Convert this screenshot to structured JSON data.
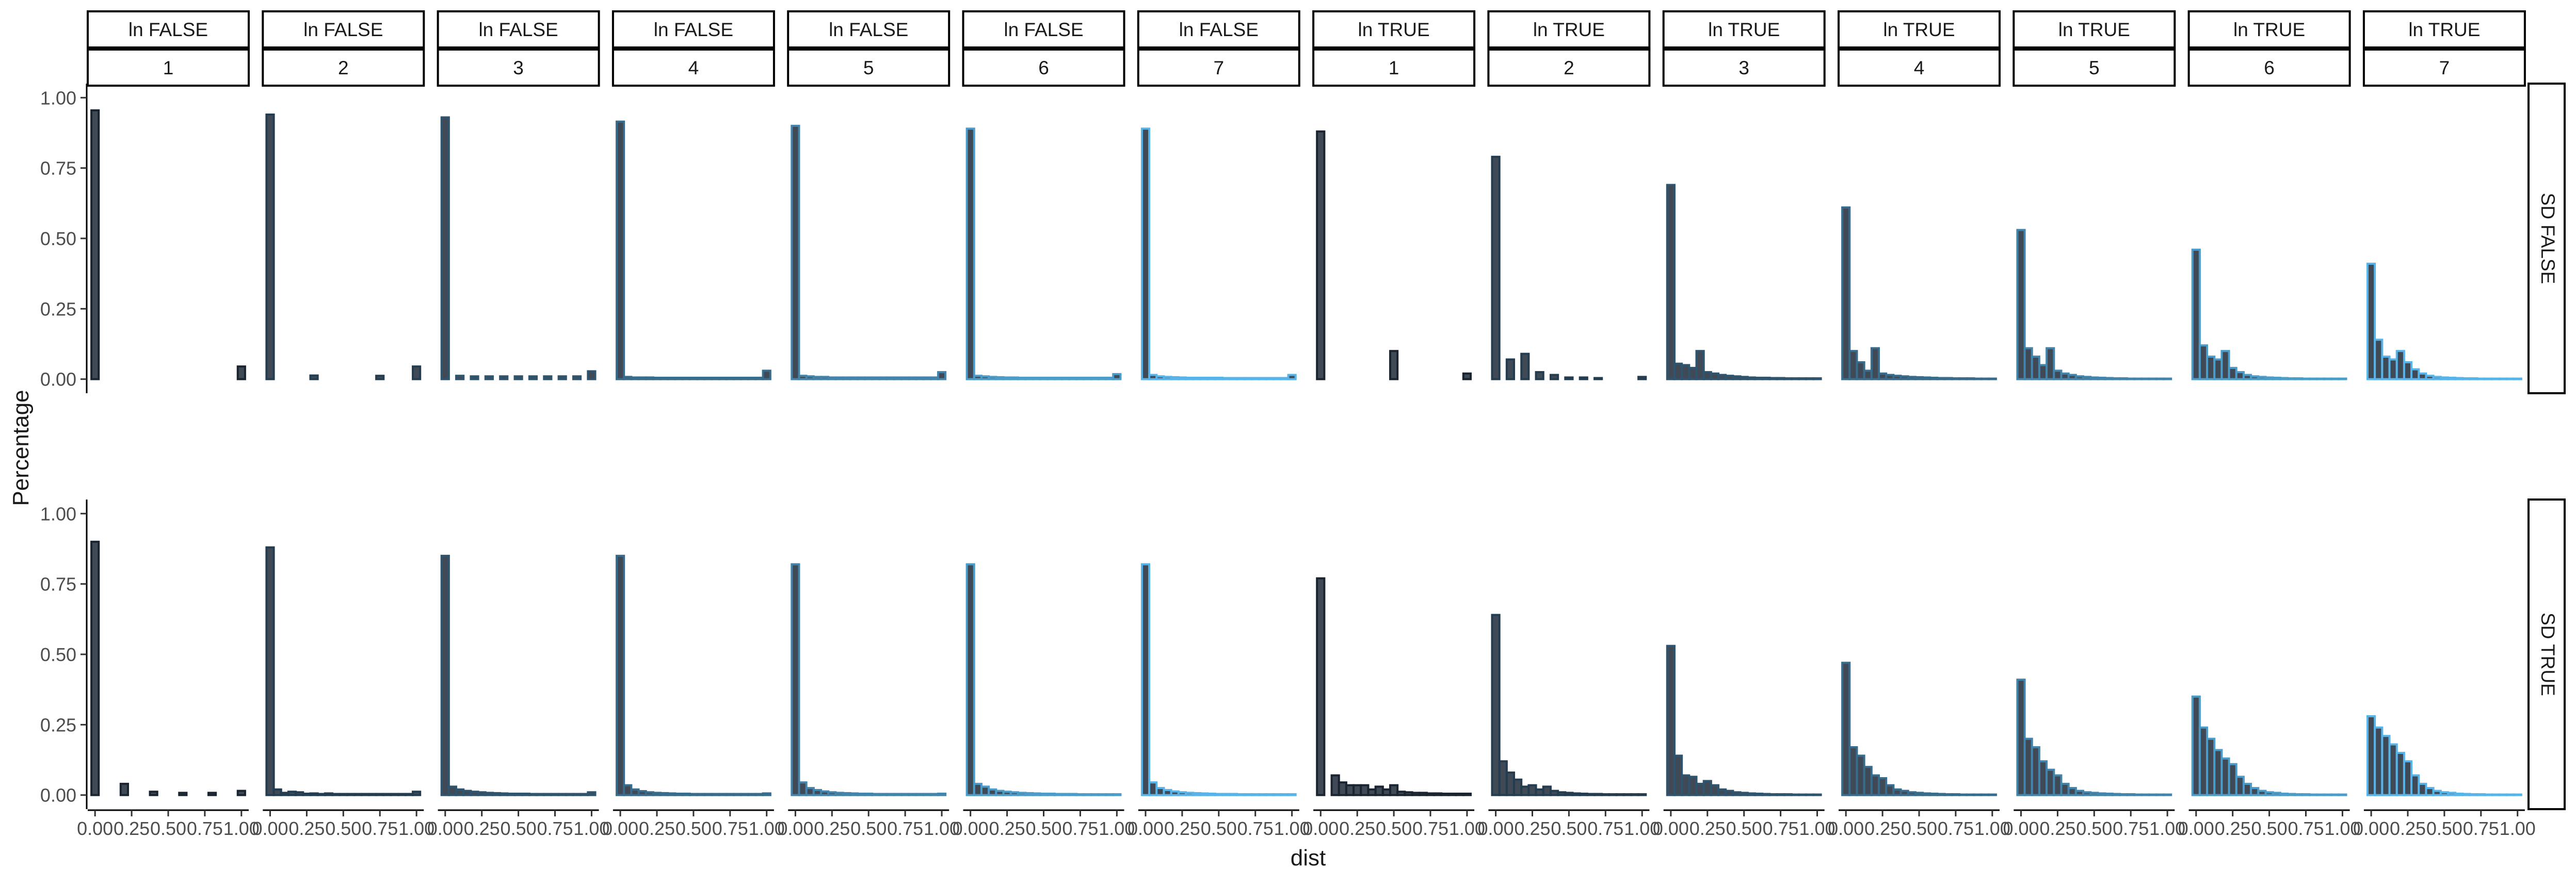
{
  "chart_data": {
    "type": "bar",
    "xlabel": "dist",
    "ylabel": "Percentage",
    "xlim": [
      -0.05,
      1.05
    ],
    "ylim": [
      -0.05,
      1.05
    ],
    "x_tick_values": [
      0,
      0.25,
      0.5,
      0.75,
      1
    ],
    "x_tick_labels": [
      "0.00",
      "0.25",
      "0.50",
      "0.75",
      "1.00"
    ],
    "y_tick_values": [
      0,
      0.25,
      0.5,
      0.75,
      1
    ],
    "y_tick_labels": [
      "0.00",
      "0.25",
      "0.50",
      "0.75",
      "1.00"
    ],
    "grid": false,
    "legend": "none",
    "colors": {
      "bar_fill": "#3f4a56",
      "edge_low": "#1a2430",
      "edge_high": "#56b4e9"
    },
    "bin_centers": [
      0.0,
      0.05,
      0.1,
      0.15,
      0.2,
      0.25,
      0.3,
      0.35,
      0.4,
      0.45,
      0.5,
      0.55,
      0.6,
      0.65,
      0.7,
      0.75,
      0.8,
      0.85,
      0.9,
      0.95,
      1.0
    ],
    "column_strips": [
      {
        "top": "ln FALSE",
        "bottom": "1"
      },
      {
        "top": "ln FALSE",
        "bottom": "2"
      },
      {
        "top": "ln FALSE",
        "bottom": "3"
      },
      {
        "top": "ln FALSE",
        "bottom": "4"
      },
      {
        "top": "ln FALSE",
        "bottom": "5"
      },
      {
        "top": "ln FALSE",
        "bottom": "6"
      },
      {
        "top": "ln FALSE",
        "bottom": "7"
      },
      {
        "top": "ln TRUE",
        "bottom": "1"
      },
      {
        "top": "ln TRUE",
        "bottom": "2"
      },
      {
        "top": "ln TRUE",
        "bottom": "3"
      },
      {
        "top": "ln TRUE",
        "bottom": "4"
      },
      {
        "top": "ln TRUE",
        "bottom": "5"
      },
      {
        "top": "ln TRUE",
        "bottom": "6"
      },
      {
        "top": "ln TRUE",
        "bottom": "7"
      }
    ],
    "row_strips": [
      "SD FALSE",
      "SD TRUE"
    ],
    "panels": [
      [
        [
          0.955,
          0,
          0,
          0,
          0,
          0,
          0,
          0,
          0,
          0,
          0,
          0,
          0,
          0,
          0,
          0,
          0,
          0,
          0,
          0,
          0.045
        ],
        [
          0.94,
          0,
          0,
          0,
          0,
          0,
          0.013,
          0,
          0,
          0,
          0,
          0,
          0,
          0,
          0,
          0.012,
          0,
          0,
          0,
          0,
          0.045
        ],
        [
          0.93,
          0,
          0.012,
          0,
          0.01,
          0,
          0.01,
          0,
          0.01,
          0,
          0.01,
          0,
          0.01,
          0,
          0.01,
          0,
          0.01,
          0,
          0.01,
          0,
          0.028
        ],
        [
          0.915,
          0.008,
          0.006,
          0.006,
          0.006,
          0.005,
          0.005,
          0.005,
          0.005,
          0.005,
          0.005,
          0.005,
          0.005,
          0.005,
          0.005,
          0.005,
          0.005,
          0.005,
          0.005,
          0.005,
          0.03
        ],
        [
          0.9,
          0.012,
          0.01,
          0.008,
          0.008,
          0.006,
          0.006,
          0.006,
          0.006,
          0.006,
          0.006,
          0.006,
          0.006,
          0.006,
          0.006,
          0.006,
          0.006,
          0.006,
          0.006,
          0.006,
          0.025
        ],
        [
          0.89,
          0.012,
          0.01,
          0.008,
          0.007,
          0.006,
          0.006,
          0.005,
          0.005,
          0.005,
          0.005,
          0.005,
          0.005,
          0.005,
          0.005,
          0.005,
          0.005,
          0.005,
          0.005,
          0.005,
          0.018
        ],
        [
          0.89,
          0.015,
          0.01,
          0.008,
          0.007,
          0.006,
          0.005,
          0.005,
          0.005,
          0.005,
          0.005,
          0.004,
          0.004,
          0.004,
          0.004,
          0.004,
          0.004,
          0.004,
          0.004,
          0.004,
          0.015
        ],
        [
          0.88,
          0,
          0,
          0,
          0,
          0,
          0,
          0,
          0,
          0,
          0.1,
          0,
          0,
          0,
          0,
          0,
          0,
          0,
          0,
          0,
          0.02
        ],
        [
          0.79,
          0,
          0.07,
          0,
          0.09,
          0,
          0.025,
          0,
          0.015,
          0,
          0.006,
          0,
          0.006,
          0,
          0.004,
          0,
          0,
          0,
          0,
          0,
          0.008
        ],
        [
          0.69,
          0.055,
          0.05,
          0.04,
          0.1,
          0.025,
          0.02,
          0.015,
          0.012,
          0.01,
          0.008,
          0.006,
          0.005,
          0.005,
          0.004,
          0.004,
          0.003,
          0.003,
          0.003,
          0.003,
          0.003
        ],
        [
          0.61,
          0.1,
          0.06,
          0.03,
          0.11,
          0.02,
          0.015,
          0.012,
          0.01,
          0.008,
          0.007,
          0.006,
          0.005,
          0.004,
          0.004,
          0.003,
          0.003,
          0.003,
          0.002,
          0.002,
          0.002
        ],
        [
          0.53,
          0.11,
          0.08,
          0.05,
          0.11,
          0.03,
          0.02,
          0.015,
          0.01,
          0.008,
          0.006,
          0.005,
          0.004,
          0.003,
          0.003,
          0.002,
          0.002,
          0.002,
          0.002,
          0.002,
          0.002
        ],
        [
          0.46,
          0.12,
          0.08,
          0.07,
          0.1,
          0.04,
          0.025,
          0.015,
          0.01,
          0.008,
          0.006,
          0.005,
          0.004,
          0.003,
          0.003,
          0.002,
          0.002,
          0.002,
          0.002,
          0.002,
          0.002
        ],
        [
          0.41,
          0.14,
          0.08,
          0.07,
          0.1,
          0.06,
          0.035,
          0.02,
          0.012,
          0.008,
          0.006,
          0.005,
          0.004,
          0.003,
          0.003,
          0.002,
          0.002,
          0.002,
          0.002,
          0.002,
          0.002
        ]
      ],
      [
        [
          0.9,
          0,
          0,
          0,
          0.04,
          0,
          0,
          0,
          0.012,
          0,
          0,
          0,
          0.008,
          0,
          0,
          0,
          0.008,
          0,
          0,
          0,
          0.015
        ],
        [
          0.88,
          0.02,
          0.008,
          0.012,
          0.01,
          0.005,
          0.006,
          0.004,
          0.006,
          0.004,
          0.004,
          0.004,
          0.004,
          0.004,
          0.004,
          0.004,
          0.004,
          0.004,
          0.004,
          0.004,
          0.012
        ],
        [
          0.85,
          0.03,
          0.02,
          0.015,
          0.012,
          0.01,
          0.008,
          0.007,
          0.006,
          0.005,
          0.005,
          0.005,
          0.004,
          0.004,
          0.004,
          0.004,
          0.004,
          0.004,
          0.004,
          0.004,
          0.01
        ],
        [
          0.85,
          0.035,
          0.02,
          0.014,
          0.01,
          0.008,
          0.007,
          0.006,
          0.005,
          0.005,
          0.004,
          0.004,
          0.004,
          0.004,
          0.004,
          0.004,
          0.004,
          0.004,
          0.004,
          0.004,
          0.006
        ],
        [
          0.82,
          0.045,
          0.025,
          0.018,
          0.013,
          0.01,
          0.008,
          0.007,
          0.006,
          0.005,
          0.005,
          0.004,
          0.004,
          0.004,
          0.004,
          0.004,
          0.004,
          0.004,
          0.004,
          0.004,
          0.005
        ],
        [
          0.82,
          0.04,
          0.03,
          0.02,
          0.015,
          0.012,
          0.01,
          0.008,
          0.007,
          0.006,
          0.005,
          0.005,
          0.004,
          0.004,
          0.004,
          0.003,
          0.003,
          0.003,
          0.003,
          0.003,
          0.003
        ],
        [
          0.82,
          0.045,
          0.025,
          0.018,
          0.013,
          0.01,
          0.008,
          0.007,
          0.006,
          0.005,
          0.004,
          0.004,
          0.004,
          0.003,
          0.003,
          0.003,
          0.003,
          0.003,
          0.003,
          0.003,
          0.003
        ],
        [
          0.77,
          0,
          0.07,
          0.045,
          0.035,
          0.035,
          0.035,
          0.02,
          0.03,
          0.02,
          0.035,
          0.012,
          0.01,
          0.008,
          0.008,
          0.006,
          0.006,
          0.005,
          0.005,
          0.005,
          0.005
        ],
        [
          0.64,
          0.12,
          0.08,
          0.055,
          0.03,
          0.035,
          0.02,
          0.03,
          0.015,
          0.01,
          0.008,
          0.006,
          0.005,
          0.004,
          0.004,
          0.003,
          0.003,
          0.003,
          0.003,
          0.003,
          0.003
        ],
        [
          0.53,
          0.14,
          0.07,
          0.065,
          0.04,
          0.05,
          0.035,
          0.02,
          0.015,
          0.01,
          0.008,
          0.006,
          0.005,
          0.004,
          0.003,
          0.003,
          0.003,
          0.002,
          0.002,
          0.002,
          0.002
        ],
        [
          0.47,
          0.17,
          0.14,
          0.1,
          0.07,
          0.06,
          0.035,
          0.02,
          0.015,
          0.01,
          0.008,
          0.006,
          0.005,
          0.004,
          0.003,
          0.003,
          0.002,
          0.002,
          0.002,
          0.002,
          0.002
        ],
        [
          0.41,
          0.2,
          0.17,
          0.12,
          0.09,
          0.07,
          0.04,
          0.025,
          0.015,
          0.01,
          0.008,
          0.006,
          0.005,
          0.004,
          0.003,
          0.003,
          0.002,
          0.002,
          0.002,
          0.002,
          0.002
        ],
        [
          0.35,
          0.24,
          0.2,
          0.16,
          0.13,
          0.11,
          0.065,
          0.04,
          0.025,
          0.015,
          0.01,
          0.008,
          0.005,
          0.004,
          0.003,
          0.003,
          0.002,
          0.002,
          0.002,
          0.002,
          0.002
        ],
        [
          0.28,
          0.24,
          0.21,
          0.18,
          0.15,
          0.12,
          0.07,
          0.04,
          0.025,
          0.015,
          0.01,
          0.008,
          0.005,
          0.004,
          0.003,
          0.003,
          0.002,
          0.002,
          0.002,
          0.002,
          0.002
        ]
      ]
    ]
  }
}
